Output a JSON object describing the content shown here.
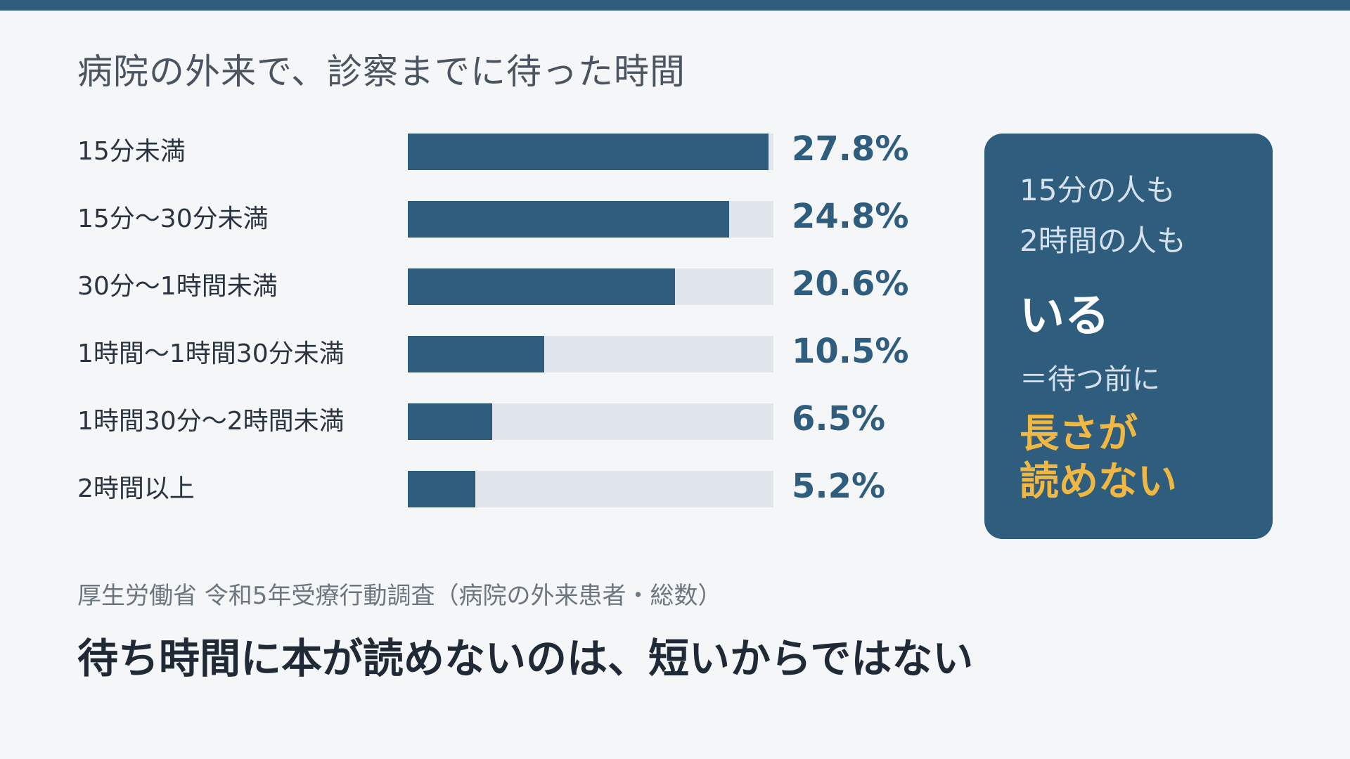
{
  "colors": {
    "background": "#f4f6f8",
    "accent": "#2e5d7e",
    "track": "#e1e6ec",
    "highlight": "#f0b843"
  },
  "title": "病院の外来で、診察までに待った時間",
  "chart_data": {
    "type": "bar",
    "orientation": "horizontal",
    "categories": [
      "15分未満",
      "15分〜30分未満",
      "30分〜1時間未満",
      "1時間〜1時間30分未満",
      "1時間30分〜2時間未満",
      "2時間以上"
    ],
    "values": [
      27.8,
      24.8,
      20.6,
      10.5,
      6.5,
      5.2
    ],
    "value_labels": [
      "27.8%",
      "24.8%",
      "20.6%",
      "10.5%",
      "6.5%",
      "5.2%"
    ],
    "xlim": [
      0,
      28.2
    ],
    "title": "病院の外来で、診察までに待った時間",
    "xlabel": "",
    "ylabel": "",
    "grid": false,
    "legend": "none"
  },
  "callout": {
    "line1": "15分の人も",
    "line2": "2時間の人も",
    "emphasis": "いる",
    "line4": "＝待つ前に",
    "accent_line1": "長さが",
    "accent_line2": "読めない"
  },
  "source": "厚生労働省 令和5年受療行動調査（病院の外来患者・総数）",
  "headline": "待ち時間に本が読めないのは、短いからではない"
}
